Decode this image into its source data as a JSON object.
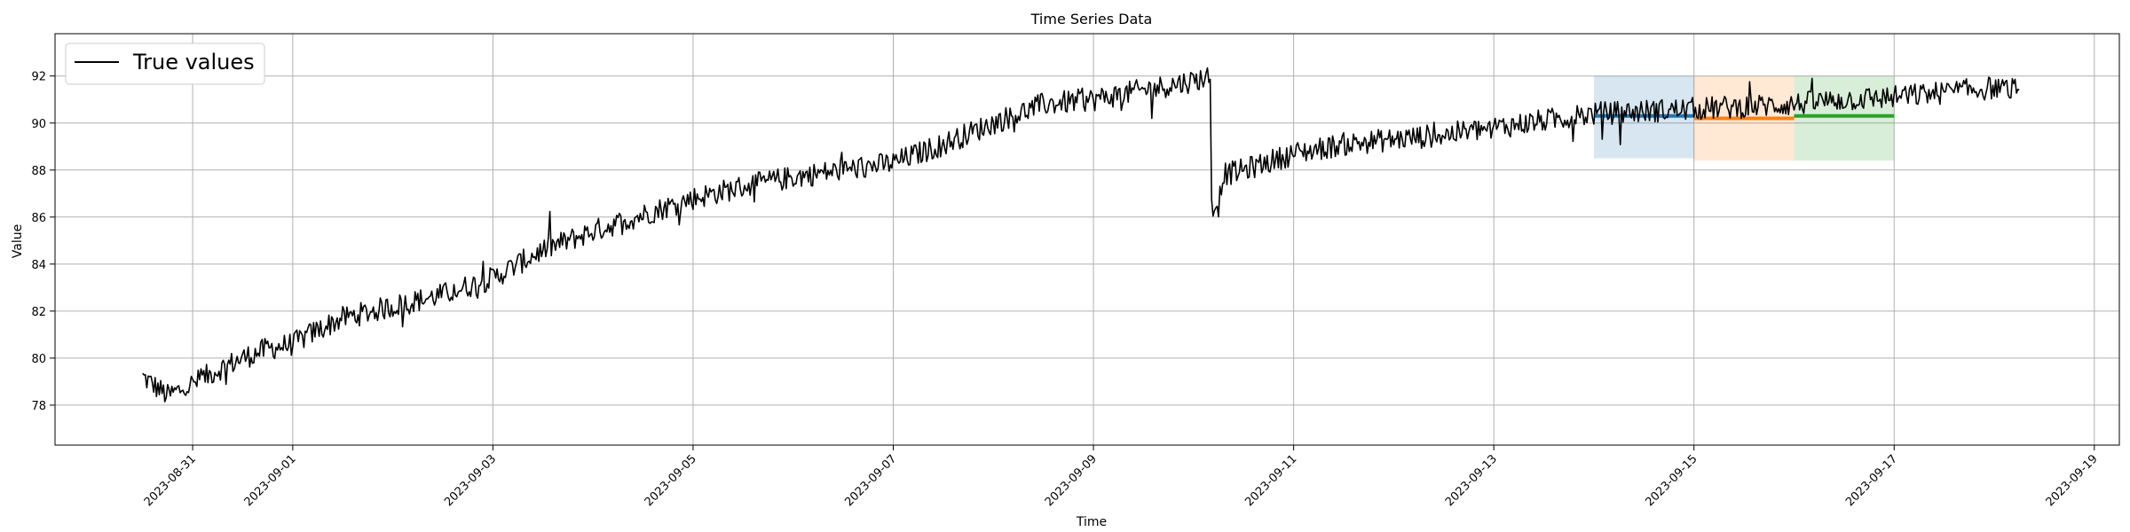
{
  "chart_data": {
    "type": "line",
    "title": "Time Series Data",
    "xlabel": "Time",
    "ylabel": "Value",
    "xlim": [
      "2023-08-29T15:00",
      "2023-09-19T06:00"
    ],
    "ylim": [
      76.3,
      93.8
    ],
    "x_ticks": [
      "2023-08-31",
      "2023-09-01",
      "2023-09-03",
      "2023-09-05",
      "2023-09-07",
      "2023-09-09",
      "2023-09-11",
      "2023-09-13",
      "2023-09-15",
      "2023-09-17",
      "2023-09-19"
    ],
    "y_ticks": [
      78,
      80,
      82,
      84,
      86,
      88,
      90,
      92
    ],
    "grid": true,
    "legend": {
      "placement": "top-left",
      "entries": [
        "True values"
      ]
    },
    "series": [
      {
        "name": "True values",
        "color": "#000000",
        "points": [
          [
            "2023-08-30T12:00",
            79.2
          ],
          [
            "2023-08-30T18:00",
            78.4
          ],
          [
            "2023-08-31T00:00",
            78.9
          ],
          [
            "2023-08-31T06:00",
            79.5
          ],
          [
            "2023-08-31T12:00",
            80.0
          ],
          [
            "2023-08-31T18:00",
            80.4
          ],
          [
            "2023-09-01T00:00",
            80.6
          ],
          [
            "2023-09-01T06:00",
            81.2
          ],
          [
            "2023-09-01T12:00",
            81.7
          ],
          [
            "2023-09-02T00:00",
            82.2
          ],
          [
            "2023-09-02T12:00",
            82.7
          ],
          [
            "2023-09-03T00:00",
            83.4
          ],
          [
            "2023-09-03T12:00",
            84.6
          ],
          [
            "2023-09-04T00:00",
            85.4
          ],
          [
            "2023-09-04T12:00",
            86.1
          ],
          [
            "2023-09-05T00:00",
            86.8
          ],
          [
            "2023-09-05T12:00",
            87.3
          ],
          [
            "2023-09-06T00:00",
            87.7
          ],
          [
            "2023-09-06T12:00",
            88.0
          ],
          [
            "2023-09-07T00:00",
            88.3
          ],
          [
            "2023-09-07T12:00",
            89.1
          ],
          [
            "2023-09-08T00:00",
            90.0
          ],
          [
            "2023-09-08T12:00",
            90.8
          ],
          [
            "2023-09-09T00:00",
            91.0
          ],
          [
            "2023-09-09T12:00",
            91.4
          ],
          [
            "2023-09-10T00:00",
            91.8
          ],
          [
            "2023-09-10T04:00",
            92.0
          ],
          [
            "2023-09-10T06:00",
            86.5
          ],
          [
            "2023-09-10T07:00",
            87.8
          ],
          [
            "2023-09-10T12:00",
            88.0
          ],
          [
            "2023-09-11T00:00",
            88.7
          ],
          [
            "2023-09-11T12:00",
            89.1
          ],
          [
            "2023-09-12T00:00",
            89.3
          ],
          [
            "2023-09-12T12:00",
            89.5
          ],
          [
            "2023-09-13T00:00",
            89.8
          ],
          [
            "2023-09-13T12:00",
            90.1
          ],
          [
            "2023-09-14T00:00",
            90.4
          ],
          [
            "2023-09-14T12:00",
            90.5
          ],
          [
            "2023-09-15T00:00",
            90.6
          ],
          [
            "2023-09-15T12:00",
            90.7
          ],
          [
            "2023-09-16T00:00",
            90.8
          ],
          [
            "2023-09-16T12:00",
            91.0
          ],
          [
            "2023-09-17T00:00",
            91.1
          ],
          [
            "2023-09-17T12:00",
            91.3
          ],
          [
            "2023-09-18T00:00",
            91.5
          ],
          [
            "2023-09-18T06:00",
            91.4
          ]
        ]
      }
    ],
    "forecast_bands": [
      {
        "color": "#1f77b4",
        "start": "2023-09-14T00:00",
        "end": "2023-09-15T00:00",
        "mean": 90.3,
        "low": 88.5,
        "high": 92.0
      },
      {
        "color": "#ff7f0e",
        "start": "2023-09-15T00:00",
        "end": "2023-09-16T00:00",
        "mean": 90.2,
        "low": 88.4,
        "high": 92.0
      },
      {
        "color": "#2ca02c",
        "start": "2023-09-16T00:00",
        "end": "2023-09-17T00:00",
        "mean": 90.3,
        "low": 88.4,
        "high": 92.0
      }
    ]
  }
}
